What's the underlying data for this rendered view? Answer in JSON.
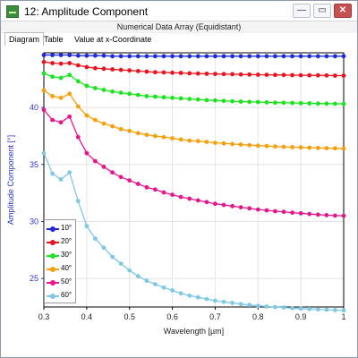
{
  "window": {
    "title": "12: Amplitude Component",
    "subtitle": "Numerical Data Array (Equidistant)",
    "min_label": "—",
    "max_label": "▭",
    "close_label": "✕"
  },
  "tabs": [
    {
      "label": "Diagram"
    },
    {
      "label": "Table"
    },
    {
      "label": "Value at x-Coordinate"
    }
  ],
  "chart_data": {
    "type": "line",
    "xlabel": "Wavelength [µm]",
    "ylabel": "Amplitude Component [°]",
    "xlim": [
      0.3,
      1.0
    ],
    "ylim": [
      22.5,
      44.8
    ],
    "xticks": [
      "0.3",
      "0.4",
      "0.5",
      "0.6",
      "0.7",
      "0.8",
      "0.9",
      "1"
    ],
    "yticks": [
      "25",
      "30",
      "35",
      "40"
    ],
    "grid": true,
    "legend_position": "bottom-left",
    "x": [
      0.3,
      0.32,
      0.34,
      0.36,
      0.38,
      0.4,
      0.42,
      0.44,
      0.46,
      0.48,
      0.5,
      0.52,
      0.54,
      0.56,
      0.58,
      0.6,
      0.62,
      0.64,
      0.66,
      0.68,
      0.7,
      0.72,
      0.74,
      0.76,
      0.78,
      0.8,
      0.82,
      0.84,
      0.86,
      0.88,
      0.9,
      0.92,
      0.94,
      0.96,
      0.98,
      1.0
    ],
    "series": [
      {
        "name": "10°",
        "color": "#1f2bd6",
        "values": [
          44.6,
          44.6,
          44.6,
          44.6,
          44.55,
          44.55,
          44.55,
          44.55,
          44.5,
          44.5,
          44.5,
          44.5,
          44.5,
          44.5,
          44.5,
          44.5,
          44.5,
          44.5,
          44.5,
          44.5,
          44.5,
          44.5,
          44.5,
          44.5,
          44.5,
          44.5,
          44.5,
          44.5,
          44.5,
          44.5,
          44.5,
          44.5,
          44.5,
          44.5,
          44.5,
          44.5
        ]
      },
      {
        "name": "20°",
        "color": "#e8141e",
        "values": [
          44.0,
          43.9,
          43.85,
          43.9,
          43.7,
          43.55,
          43.45,
          43.4,
          43.35,
          43.3,
          43.25,
          43.2,
          43.15,
          43.1,
          43.08,
          43.05,
          43.03,
          43.0,
          42.98,
          42.96,
          42.95,
          42.93,
          42.92,
          42.9,
          42.89,
          42.88,
          42.87,
          42.86,
          42.85,
          42.84,
          42.83,
          42.82,
          42.82,
          42.81,
          42.8,
          42.8
        ]
      },
      {
        "name": "30°",
        "color": "#1ae61e",
        "values": [
          43.0,
          42.7,
          42.6,
          42.85,
          42.3,
          41.9,
          41.7,
          41.55,
          41.4,
          41.3,
          41.2,
          41.1,
          41.0,
          40.95,
          40.9,
          40.85,
          40.8,
          40.75,
          40.7,
          40.65,
          40.62,
          40.58,
          40.55,
          40.52,
          40.5,
          40.48,
          40.45,
          40.43,
          40.42,
          40.4,
          40.38,
          40.36,
          40.35,
          40.34,
          40.33,
          40.32
        ]
      },
      {
        "name": "40°",
        "color": "#f5a00c",
        "values": [
          41.5,
          41.0,
          40.85,
          41.2,
          40.1,
          39.3,
          38.9,
          38.6,
          38.35,
          38.1,
          37.95,
          37.75,
          37.6,
          37.5,
          37.4,
          37.3,
          37.2,
          37.1,
          37.05,
          36.98,
          36.9,
          36.85,
          36.8,
          36.75,
          36.7,
          36.65,
          36.62,
          36.58,
          36.55,
          36.52,
          36.5,
          36.48,
          36.45,
          36.43,
          36.42,
          36.4
        ]
      },
      {
        "name": "50°",
        "color": "#e6168c",
        "values": [
          39.8,
          38.9,
          38.7,
          39.2,
          37.4,
          36.0,
          35.3,
          34.8,
          34.3,
          33.9,
          33.6,
          33.3,
          33.0,
          32.8,
          32.55,
          32.35,
          32.15,
          32.0,
          31.85,
          31.7,
          31.55,
          31.45,
          31.35,
          31.25,
          31.15,
          31.05,
          30.98,
          30.9,
          30.85,
          30.78,
          30.72,
          30.66,
          30.6,
          30.56,
          30.52,
          30.5
        ]
      },
      {
        "name": "60°",
        "color": "#7fc8e6",
        "values": [
          36.0,
          34.2,
          33.7,
          34.3,
          31.8,
          29.6,
          28.5,
          27.7,
          26.9,
          26.3,
          25.7,
          25.2,
          24.8,
          24.5,
          24.2,
          23.95,
          23.7,
          23.5,
          23.35,
          23.2,
          23.05,
          22.95,
          22.85,
          22.75,
          22.68,
          22.6,
          22.55,
          22.5,
          22.45,
          22.4,
          22.36,
          22.32,
          22.29,
          22.26,
          22.23,
          22.2
        ]
      }
    ]
  }
}
